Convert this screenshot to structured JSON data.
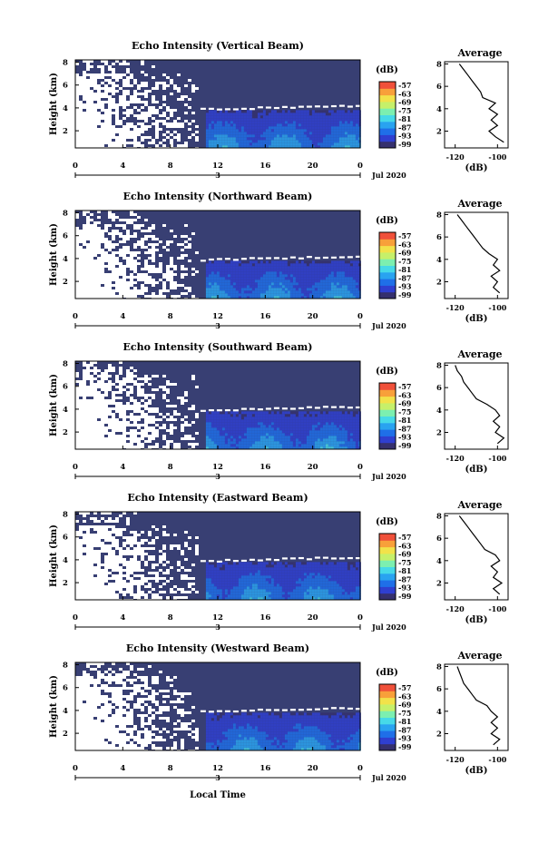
{
  "chart_data": [
    {
      "type": "heatmap",
      "title": "Echo Intensity (Vertical Beam)",
      "ylabel": "Height (km)",
      "xticks": [
        "0",
        "4",
        "8",
        "12",
        "16",
        "20",
        "0"
      ],
      "yticks": [
        "2",
        "4",
        "6",
        "8"
      ],
      "date_label": "3",
      "month_label": "Jul 2020",
      "colorbar_unit": "(dB)",
      "colorbar_ticks": [
        "-57",
        "-63",
        "-69",
        "-75",
        "-81",
        "-87",
        "-93",
        "-99"
      ],
      "average": {
        "title": "Average",
        "xlabel": "(dB)",
        "xticks": [
          "-120",
          "-100"
        ],
        "yticks": [
          "2",
          "4",
          "6",
          "8"
        ],
        "xlim": [
          -125,
          -95
        ],
        "ylim": [
          0.5,
          8.2
        ],
        "height": [
          1.0,
          1.5,
          2.0,
          2.5,
          3.0,
          3.5,
          4.0,
          4.5,
          5.0,
          5.5,
          6.0,
          6.5,
          7.0,
          7.5,
          8.0
        ],
        "db": [
          -97,
          -101,
          -104,
          -100,
          -103,
          -100,
          -104,
          -101,
          -107,
          -108,
          -110,
          -112,
          -114,
          -116,
          -118
        ]
      }
    },
    {
      "type": "heatmap",
      "title": "Echo Intensity (Northward Beam)",
      "ylabel": "Height (km)",
      "xticks": [
        "0",
        "4",
        "8",
        "12",
        "16",
        "20",
        "0"
      ],
      "yticks": [
        "2",
        "4",
        "6",
        "8"
      ],
      "date_label": "3",
      "month_label": "Jul 2020",
      "colorbar_unit": "(dB)",
      "colorbar_ticks": [
        "-57",
        "-63",
        "-69",
        "-75",
        "-81",
        "-87",
        "-93",
        "-99"
      ],
      "average": {
        "title": "Average",
        "xlabel": "(dB)",
        "xticks": [
          "-120",
          "-100"
        ],
        "yticks": [
          "2",
          "4",
          "6",
          "8"
        ],
        "xlim": [
          -125,
          -95
        ],
        "ylim": [
          0.5,
          8.2
        ],
        "height": [
          1.0,
          1.5,
          2.0,
          2.5,
          3.0,
          3.5,
          4.0,
          4.5,
          5.0,
          5.5,
          6.0,
          6.5,
          7.0,
          7.5,
          8.0
        ],
        "db": [
          -99,
          -102,
          -100,
          -103,
          -99,
          -102,
          -100,
          -104,
          -107,
          -109,
          -111,
          -113,
          -115,
          -117,
          -119
        ]
      }
    },
    {
      "type": "heatmap",
      "title": "Echo Intensity (Southward Beam)",
      "ylabel": "Height (km)",
      "xticks": [
        "0",
        "4",
        "8",
        "12",
        "16",
        "20",
        "0"
      ],
      "yticks": [
        "2",
        "4",
        "6",
        "8"
      ],
      "date_label": "3",
      "month_label": "Jul 2020",
      "colorbar_unit": "(dB)",
      "colorbar_ticks": [
        "-57",
        "-63",
        "-69",
        "-75",
        "-81",
        "-87",
        "-93",
        "-99"
      ],
      "average": {
        "title": "Average",
        "xlabel": "(dB)",
        "xticks": [
          "-120",
          "-100"
        ],
        "yticks": [
          "2",
          "4",
          "6",
          "8"
        ],
        "xlim": [
          -125,
          -95
        ],
        "ylim": [
          0.5,
          8.2
        ],
        "height": [
          1.0,
          1.5,
          2.0,
          2.5,
          3.0,
          3.5,
          4.0,
          4.5,
          5.0,
          5.5,
          6.0,
          6.5,
          7.0,
          7.5,
          8.0
        ],
        "db": [
          -100,
          -97,
          -101,
          -99,
          -102,
          -99,
          -101,
          -105,
          -110,
          -112,
          -114,
          -116,
          -117,
          -119,
          -120
        ]
      }
    },
    {
      "type": "heatmap",
      "title": "Echo Intensity (Eastward Beam)",
      "ylabel": "Height (km)",
      "xticks": [
        "0",
        "4",
        "8",
        "12",
        "16",
        "20",
        "0"
      ],
      "yticks": [
        "2",
        "4",
        "6",
        "8"
      ],
      "date_label": "3",
      "month_label": "Jul 2020",
      "colorbar_unit": "(dB)",
      "colorbar_ticks": [
        "-57",
        "-63",
        "-69",
        "-75",
        "-81",
        "-87",
        "-93",
        "-99"
      ],
      "average": {
        "title": "Average",
        "xlabel": "(dB)",
        "xticks": [
          "-120",
          "-100"
        ],
        "yticks": [
          "2",
          "4",
          "6",
          "8"
        ],
        "xlim": [
          -125,
          -95
        ],
        "ylim": [
          0.5,
          8.2
        ],
        "height": [
          1.0,
          1.5,
          2.0,
          2.5,
          3.0,
          3.5,
          4.0,
          4.5,
          5.0,
          5.5,
          6.0,
          6.5,
          7.0,
          7.5,
          8.0
        ],
        "db": [
          -99,
          -102,
          -98,
          -102,
          -100,
          -103,
          -99,
          -101,
          -106,
          -108,
          -110,
          -112,
          -114,
          -116,
          -118
        ]
      }
    },
    {
      "type": "heatmap",
      "title": "Echo Intensity (Westward Beam)",
      "ylabel": "Height (km)",
      "xticks": [
        "0",
        "4",
        "8",
        "12",
        "16",
        "20",
        "0"
      ],
      "yticks": [
        "2",
        "4",
        "6",
        "8"
      ],
      "date_label": "3",
      "month_label": "Jul 2020",
      "colorbar_unit": "(dB)",
      "colorbar_ticks": [
        "-57",
        "-63",
        "-69",
        "-75",
        "-81",
        "-87",
        "-93",
        "-99"
      ],
      "average": {
        "title": "Average",
        "xlabel": "(dB)",
        "xticks": [
          "-120",
          "-100"
        ],
        "yticks": [
          "2",
          "4",
          "6",
          "8"
        ],
        "xlim": [
          -125,
          -95
        ],
        "ylim": [
          0.5,
          8.2
        ],
        "height": [
          1.0,
          1.5,
          2.0,
          2.5,
          3.0,
          3.5,
          4.0,
          4.5,
          5.0,
          5.5,
          6.0,
          6.5,
          7.0,
          7.5,
          8.0
        ],
        "db": [
          -102,
          -99,
          -103,
          -100,
          -103,
          -100,
          -103,
          -105,
          -110,
          -112,
          -114,
          -116,
          -117,
          -118,
          -119
        ]
      }
    }
  ],
  "xlabel": "Local Time",
  "colormap": [
    "#35306e",
    "#2f3fd0",
    "#1f6fe8",
    "#29a3f0",
    "#46d9e8",
    "#7cefb0",
    "#c6f06a",
    "#f2e24a",
    "#f8a03a",
    "#f0503a"
  ],
  "background_color": "#383f73",
  "missing_color": "#ffffff"
}
